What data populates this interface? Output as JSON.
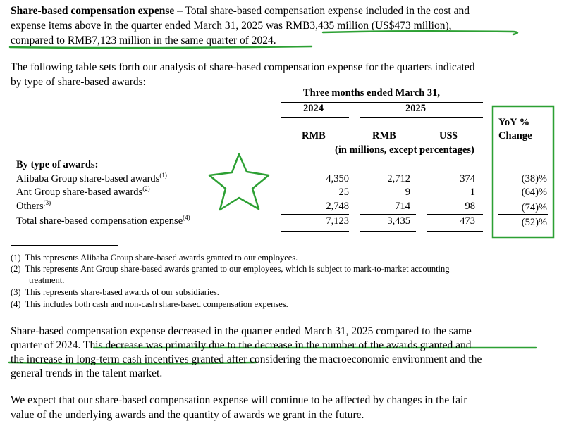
{
  "paragraph1": {
    "bold": "Share-based compensation expense",
    "line1": " – Total share-based compensation expense included in the cost and",
    "line2": "expense items above in the quarter ended March 31, 2025 was RMB3,435 million (US$473 million),",
    "line3": "compared to RMB7,123 million in the same quarter of 2024."
  },
  "paragraph2": {
    "line1": "The following table sets forth our analysis of share-based compensation expense for the quarters indicated",
    "line2": "by type of share-based awards:"
  },
  "table": {
    "period_header": "Three months ended March 31,",
    "year_2024": "2024",
    "year_2025": "2025",
    "yoy_line1": "YoY %",
    "yoy_line2": "Change",
    "currency_rmb_2024": "RMB",
    "currency_rmb_2025": "RMB",
    "currency_usd": "US$",
    "units_note": "(in millions, except percentages)",
    "section_label": "By type of awards:",
    "rows": [
      {
        "label": "Alibaba Group share-based awards",
        "note": "(1)",
        "rmb_2024": "4,350",
        "rmb_2025": "2,712",
        "usd_2025": "374",
        "yoy": "(38)%"
      },
      {
        "label": "Ant Group share-based awards",
        "note": "(2)",
        "rmb_2024": "25",
        "rmb_2025": "9",
        "usd_2025": "1",
        "yoy": "(64)%"
      },
      {
        "label": "Others",
        "note": "(3)",
        "rmb_2024": "2,748",
        "rmb_2025": "714",
        "usd_2025": "98",
        "yoy": "(74)%"
      },
      {
        "label": "Total share-based compensation expense",
        "note": "(4)",
        "rmb_2024": "7,123",
        "rmb_2025": "3,435",
        "usd_2025": "473",
        "yoy": "(52)%"
      }
    ]
  },
  "footnotes": [
    {
      "num": "(1)",
      "text": "This represents Alibaba Group share-based awards granted to our employees."
    },
    {
      "num": "(2)",
      "text": "This represents Ant Group share-based awards granted to our employees, which is subject to mark-to-market accounting",
      "cont": "treatment."
    },
    {
      "num": "(3)",
      "text": "This represents share-based awards of our subsidiaries."
    },
    {
      "num": "(4)",
      "text": "This includes both cash and non-cash share-based compensation expenses."
    }
  ],
  "paragraph3": {
    "line1": "Share-based compensation expense decreased in the quarter ended March 31, 2025 compared to the same",
    "line2": "quarter of 2024. This decrease was primarily due to the decrease in the number of the awards granted and",
    "line3": "the increase in long-term cash incentives granted after considering the macroeconomic environment and the",
    "line4": "general trends in the talent market."
  },
  "paragraph4": {
    "line1": "We expect that our share-based compensation expense will continue to be affected by changes in the fair",
    "line2": "value of the underlying awards and the quantity of awards we grant in the future."
  },
  "annotations": {
    "highlight_color": "#2ca033",
    "star_icon": "star-outline-icon"
  }
}
